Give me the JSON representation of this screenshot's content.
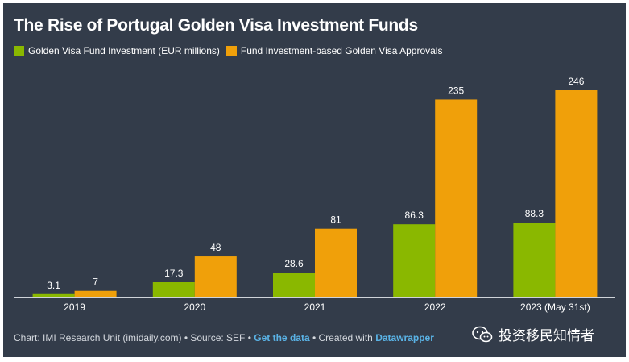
{
  "title": "The Rise of Portugal Golden Visa Investment Funds",
  "colors": {
    "series1": "#8ab800",
    "series2": "#f0a00a",
    "background": "#333c4a",
    "label": "#ffffff",
    "link": "#5ab3e6"
  },
  "chart_data": {
    "type": "bar",
    "title": "The Rise of Portugal Golden Visa Investment Funds",
    "categories": [
      "2019",
      "2020",
      "2021",
      "2022",
      "2023 (May 31st)"
    ],
    "series": [
      {
        "name": "Golden Visa Fund Investment (EUR millions)",
        "values": [
          3.1,
          17.3,
          28.6,
          86.3,
          88.3
        ],
        "labels": [
          "3.1",
          "17.3",
          "28.6",
          "86.3",
          "88.3"
        ]
      },
      {
        "name": "Fund Investment-based Golden Visa Approvals",
        "values": [
          7,
          48,
          81,
          235,
          246
        ],
        "labels": [
          "7",
          "48",
          "81",
          "235",
          "246"
        ]
      }
    ],
    "xlabel": "",
    "ylabel": "",
    "ylim": [
      0,
      246
    ],
    "grid": false,
    "legend": "top-left"
  },
  "footer": {
    "prefix": "Chart: IMI Research Unit (imidaily.com) • Source: SEF • ",
    "get_data": "Get the data",
    "created_with": " • Created with ",
    "tool": "Datawrapper"
  },
  "watermark": {
    "text": "投资移民知情者",
    "icon": "wechat-icon"
  }
}
